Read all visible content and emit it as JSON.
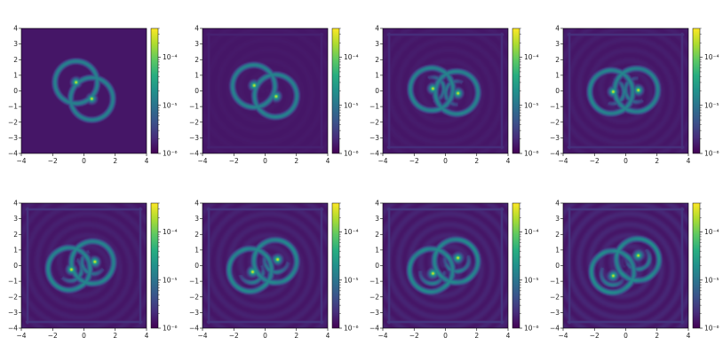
{
  "colormap": {
    "name": "viridis",
    "stops": [
      "#440154",
      "#472d7b",
      "#3b528b",
      "#2c728e",
      "#21918c",
      "#28ae80",
      "#5ec962",
      "#addc30",
      "#fde725"
    ]
  },
  "chart_data": {
    "type": "heatmap",
    "grid": {
      "rows": 2,
      "cols": 4
    },
    "shared": {
      "xlim": [
        -4,
        4
      ],
      "ylim": [
        -4,
        4
      ],
      "xticks": [
        -4,
        -2,
        0,
        2,
        4
      ],
      "yticks": [
        -4,
        -3,
        -2,
        -1,
        0,
        1,
        2,
        3,
        4
      ],
      "xtick_labels": [
        "−4",
        "−2",
        "0",
        "2",
        "4"
      ],
      "ytick_labels": [
        "−4",
        "−3",
        "−2",
        "−1",
        "0",
        "1",
        "2",
        "3",
        "4"
      ],
      "colorbar": {
        "scale": "log",
        "range": [
          1e-06,
          0.0004
        ],
        "ticks": [
          1e-06,
          1e-05,
          0.0001
        ],
        "tick_labels": [
          "10⁻⁶",
          "10⁻⁵",
          "10⁻⁴"
        ]
      }
    },
    "panels": [
      {
        "cores": [
          [
            -0.5,
            0.55
          ],
          [
            0.5,
            -0.5
          ]
        ],
        "arms": 0.0,
        "ring_radius": 1.35,
        "box": 0.0
      },
      {
        "cores": [
          [
            -0.7,
            0.35
          ],
          [
            0.7,
            -0.35
          ]
        ],
        "arms": 0.25,
        "ring_radius": 1.4,
        "box": 0.15
      },
      {
        "cores": [
          [
            -0.8,
            0.15
          ],
          [
            0.8,
            -0.15
          ]
        ],
        "arms": 0.45,
        "ring_radius": 1.45,
        "box": 0.3
      },
      {
        "cores": [
          [
            -0.8,
            -0.05
          ],
          [
            0.8,
            0.05
          ]
        ],
        "arms": 0.6,
        "ring_radius": 1.5,
        "box": 0.35
      },
      {
        "cores": [
          [
            -0.8,
            -0.25
          ],
          [
            0.7,
            0.25
          ]
        ],
        "arms": 0.75,
        "ring_radius": 1.5,
        "box": 0.4
      },
      {
        "cores": [
          [
            -0.8,
            -0.4
          ],
          [
            0.8,
            0.4
          ]
        ],
        "arms": 0.9,
        "ring_radius": 1.55,
        "box": 0.4
      },
      {
        "cores": [
          [
            -0.8,
            -0.5
          ],
          [
            0.8,
            0.5
          ]
        ],
        "arms": 1.05,
        "ring_radius": 1.6,
        "box": 0.45
      },
      {
        "cores": [
          [
            -0.8,
            -0.65
          ],
          [
            0.8,
            0.65
          ]
        ],
        "arms": 1.2,
        "ring_radius": 1.6,
        "box": 0.45
      }
    ]
  }
}
